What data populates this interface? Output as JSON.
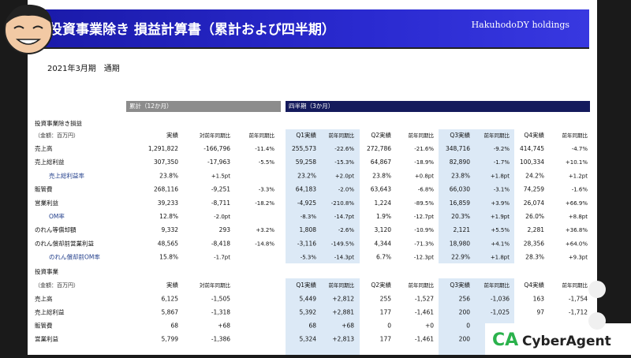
{
  "header": {
    "title": "投資事業除き 損益計算書（累計および四半期）",
    "company": "HakuhodoDY holdings",
    "period": "2021年3月期　通期"
  },
  "sections": {
    "cumulative": "累計（12か月）",
    "quarterly": "四半期（3か月）"
  },
  "tables": [
    {
      "label": "投資事業除き損益",
      "unit": "（金額：百万円）",
      "headers": [
        "実績",
        "対前年同期比",
        "前年同期比",
        "Q1実績",
        "前年同期比",
        "Q2実績",
        "前年同期比",
        "Q3実績",
        "前年同期比",
        "Q4実績",
        "前年同期比"
      ],
      "rows": [
        {
          "label": "売上高",
          "cells": [
            "1,291,822",
            "-166,796",
            "-11.4%",
            "255,573",
            "-22.6%",
            "272,786",
            "-21.6%",
            "348,716",
            "-9.2%",
            "414,745",
            "-4.7%"
          ]
        },
        {
          "label": "売上総利益",
          "cells": [
            "307,350",
            "-17,963",
            "-5.5%",
            "59,258",
            "-15.3%",
            "64,867",
            "-18.9%",
            "82,890",
            "-1.7%",
            "100,334",
            "+10.1%"
          ]
        },
        {
          "label": "売上総利益率",
          "cells": [
            "23.8%",
            "+1.5pt",
            null,
            "23.2%",
            "+2.0pt",
            "23.8%",
            "+0.8pt",
            "23.8%",
            "+1.8pt",
            "24.2%",
            "+1.2pt"
          ]
        },
        {
          "label": "販管費",
          "cells": [
            "268,116",
            "-9,251",
            "-3.3%",
            "64,183",
            "-2.0%",
            "63,643",
            "-6.8%",
            "66,030",
            "-3.1%",
            "74,259",
            "-1.6%"
          ]
        },
        {
          "label": "営業利益",
          "cells": [
            "39,233",
            "-8,711",
            "-18.2%",
            "-4,925",
            "-210.8%",
            "1,224",
            "-89.5%",
            "16,859",
            "+3.9%",
            "26,074",
            "+66.9%"
          ]
        },
        {
          "label": "OM率",
          "cells": [
            "12.8%",
            "-2.0pt",
            null,
            "-8.3%",
            "-14.7pt",
            "1.9%",
            "-12.7pt",
            "20.3%",
            "+1.9pt",
            "26.0%",
            "+8.8pt"
          ]
        },
        {
          "label": "のれん等償却額",
          "cells": [
            "9,332",
            "293",
            "+3.2%",
            "1,808",
            "-2.6%",
            "3,120",
            "-10.9%",
            "2,121",
            "+5.5%",
            "2,281",
            "+36.8%"
          ]
        },
        {
          "label": "のれん償却前営業利益",
          "cells": [
            "48,565",
            "-8,418",
            "-14.8%",
            "-3,116",
            "-149.5%",
            "4,344",
            "-71.3%",
            "18,980",
            "+4.1%",
            "28,356",
            "+64.0%"
          ]
        },
        {
          "label": "のれん償却前OM率",
          "cells": [
            "15.8%",
            "-1.7pt",
            null,
            "-5.3%",
            "-14.3pt",
            "6.7%",
            "-12.3pt",
            "22.9%",
            "+1.8pt",
            "28.3%",
            "+9.3pt"
          ]
        }
      ]
    },
    {
      "label": "投資事業",
      "unit": "（金額：百万円）",
      "headers": [
        "実績",
        "対前年同期比",
        "Q1実績",
        "前年同期比",
        "Q2実績",
        "前年同期比",
        "Q3実績",
        "前年同期比",
        "Q4実績",
        "前年同期比"
      ],
      "rows": [
        {
          "label": "売上高",
          "cells": [
            "6,125",
            "-1,505",
            "5,449",
            "+2,812",
            "255",
            "-1,527",
            "256",
            "-1,036",
            "163",
            "-1,754"
          ]
        },
        {
          "label": "売上総利益",
          "cells": [
            "5,867",
            "-1,318",
            "5,392",
            "+2,881",
            "177",
            "-1,461",
            "200",
            "-1,025",
            "97",
            "-1,712"
          ]
        },
        {
          "label": "販管費",
          "cells": [
            "68",
            "+68",
            "68",
            "+68",
            "0",
            "+0",
            "0",
            null,
            null,
            null
          ]
        },
        {
          "label": "営業利益",
          "cells": [
            "5,799",
            "-1,386",
            "5,324",
            "+2,813",
            "177",
            "-1,461",
            "200",
            null,
            null,
            null
          ]
        }
      ]
    }
  ],
  "overlay": {
    "logo": "CyberAgent"
  }
}
